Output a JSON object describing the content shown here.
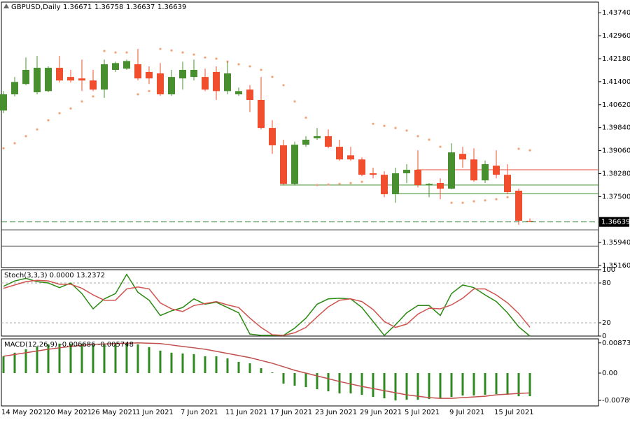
{
  "chart_data": [
    {
      "type": "candlestick",
      "title": "GBPUSD,Daily",
      "categories": [
        "14 May 2021",
        null,
        null,
        null,
        "20 May 2021",
        null,
        null,
        null,
        "26 May 2021",
        null,
        null,
        null,
        "1 Jun 2021",
        null,
        null,
        null,
        "7 Jun 2021",
        null,
        null,
        null,
        "11 Jun 2021",
        null,
        null,
        null,
        "17 Jun 2021",
        null,
        null,
        null,
        "23 Jun 2021",
        null,
        null,
        null,
        "29 Jun 2021",
        null,
        null,
        null,
        "5 Jul 2021",
        null,
        null,
        null,
        "9 Jul 2021",
        null,
        null,
        null,
        "15 Jul 2021",
        null,
        null,
        null
      ],
      "open": [
        1.4042,
        1.4097,
        1.4132,
        1.4104,
        1.4108,
        1.4187,
        1.4156,
        1.4151,
        1.4144,
        1.4113,
        1.418,
        1.4184,
        1.4199,
        1.4173,
        1.4168,
        1.4097,
        1.4151,
        1.4156,
        1.4156,
        1.4173,
        1.4108,
        1.4097,
        1.4113,
        1.4078,
        1.3983,
        1.3924,
        1.3793,
        1.3926,
        1.3948,
        1.3955,
        1.3919,
        1.389,
        1.3876,
        1.3829,
        1.3824,
        1.3758,
        1.3829,
        1.3841,
        1.3789,
        1.3796,
        1.3777,
        1.3895,
        1.3876,
        1.3805,
        1.3855,
        1.3824,
        1.377,
        1.36671
      ],
      "high": [
        1.4108,
        1.4156,
        1.4222,
        1.4227,
        1.4192,
        1.4227,
        1.418,
        1.4215,
        1.418,
        1.4215,
        1.4208,
        1.4215,
        1.4251,
        1.4192,
        1.4203,
        1.418,
        1.4208,
        1.4215,
        1.4184,
        1.4192,
        1.4208,
        1.412,
        1.4128,
        1.4156,
        1.4009,
        1.3943,
        1.3936,
        1.3955,
        1.3983,
        1.3978,
        1.3943,
        1.3919,
        1.3883,
        1.3848,
        1.3836,
        1.3848,
        1.386,
        1.3907,
        1.3796,
        1.3812,
        1.3931,
        1.3919,
        1.3914,
        1.3872,
        1.3907,
        1.386,
        1.3777,
        1.36758
      ],
      "low": [
        1.4033,
        1.409,
        1.4128,
        1.4097,
        1.4104,
        1.4137,
        1.4137,
        1.4108,
        1.4108,
        1.4085,
        1.4173,
        1.418,
        1.4144,
        1.4132,
        1.4092,
        1.4092,
        1.4113,
        1.4144,
        1.4108,
        1.4078,
        1.4097,
        1.4092,
        1.4037,
        1.3978,
        1.3895,
        1.3789,
        1.3789,
        1.3919,
        1.3943,
        1.3914,
        1.3872,
        1.3872,
        1.3819,
        1.3812,
        1.3748,
        1.3729,
        1.3796,
        1.3781,
        1.3748,
        1.3741,
        1.3775,
        1.3848,
        1.38,
        1.3796,
        1.3812,
        1.3758,
        1.3654,
        1.36637
      ],
      "close": [
        1.4097,
        1.4139,
        1.418,
        1.4187,
        1.4187,
        1.4144,
        1.4144,
        1.4144,
        1.4113,
        1.4199,
        1.4203,
        1.421,
        1.4151,
        1.4151,
        1.4097,
        1.4156,
        1.418,
        1.418,
        1.4113,
        1.4108,
        1.4168,
        1.4108,
        1.4078,
        1.3983,
        1.3924,
        1.3793,
        1.3926,
        1.3943,
        1.3955,
        1.3919,
        1.3876,
        1.3876,
        1.3824,
        1.3824,
        1.3758,
        1.3829,
        1.3841,
        1.3789,
        1.3793,
        1.3777,
        1.39,
        1.3876,
        1.3805,
        1.386,
        1.3824,
        1.3765,
        1.3668,
        1.36639
      ],
      "up_color": "#478f2f",
      "down_color": "#f04e2d",
      "sar": {
        "color": "#f4a27a",
        "values": [
          1.3914,
          1.3931,
          1.3955,
          1.3978,
          1.4009,
          1.4033,
          1.4049,
          1.4073,
          1.409,
          1.4244,
          1.4239,
          1.4239,
          1.4097,
          1.4108,
          1.4251,
          1.4246,
          1.4239,
          1.4232,
          1.4222,
          1.4218,
          1.4208,
          1.4199,
          1.4192,
          1.418,
          1.4156,
          1.4128,
          1.4073,
          1.4018,
          1.3789,
          1.3791,
          1.3793,
          1.3796,
          1.38,
          1.3997,
          1.399,
          1.3983,
          1.3974,
          1.3955,
          1.3943,
          1.3919,
          1.3729,
          1.3729,
          1.3734,
          1.3737,
          1.3741,
          1.3748,
          1.3912,
          1.3907
        ]
      },
      "lines": [
        {
          "value": 1.3841,
          "color": "#e0533a"
        },
        {
          "value": 1.3789,
          "color": "#3a8a2a"
        },
        {
          "value": 1.376,
          "color": "#3a8a2a"
        },
        {
          "value": 1.3637,
          "color": "#555555"
        },
        {
          "value": 1.3582,
          "color": "#555555"
        }
      ],
      "price_line_color": "#2e7d32",
      "ylim": [
        1.3509,
        1.441
      ],
      "yticks": [
        {
          "value": 1.4374,
          "label": "1.43740"
        },
        {
          "value": 1.4296,
          "label": "1.42960"
        },
        {
          "value": 1.4218,
          "label": "1.42180"
        },
        {
          "value": 1.414,
          "label": "1.41400"
        },
        {
          "value": 1.4062,
          "label": "1.40620"
        },
        {
          "value": 1.3984,
          "label": "1.39840"
        },
        {
          "value": 1.3906,
          "label": "1.39060"
        },
        {
          "value": 1.3828,
          "label": "1.38280"
        },
        {
          "value": 1.375,
          "label": "1.37500"
        },
        {
          "value": 1.3594,
          "label": "1.35940"
        },
        {
          "value": 1.3516,
          "label": "1.35160"
        }
      ]
    },
    {
      "type": "line",
      "title": "Stoch(3,3,3) 0.0000 13.2372",
      "series": [
        {
          "color": "#2a8a12",
          "values": [
            75,
            83,
            87,
            82,
            80,
            73,
            80,
            64,
            41,
            56,
            64,
            93,
            66,
            54,
            31,
            38,
            43,
            56,
            48,
            51,
            43,
            35,
            3,
            1,
            1,
            1,
            12,
            27,
            48,
            56,
            57,
            56,
            43,
            22,
            1,
            17,
            35,
            46,
            46,
            31,
            64,
            77,
            73,
            62,
            52,
            35,
            14,
            0
          ]
        },
        {
          "color": "#d0534f",
          "values": [
            72,
            77,
            82,
            84,
            83,
            78,
            78,
            72,
            62,
            54,
            54,
            71,
            74,
            71,
            50,
            41,
            37,
            46,
            49,
            52,
            47,
            43,
            27,
            13,
            2,
            1,
            5,
            13,
            29,
            44,
            54,
            56,
            52,
            40,
            22,
            13,
            18,
            33,
            42,
            41,
            47,
            57,
            71,
            71,
            62,
            50,
            34,
            13.2372
          ]
        }
      ],
      "ylim": [
        0,
        100
      ],
      "yticks": [
        100,
        80,
        20,
        0
      ]
    },
    {
      "type": "macd",
      "title": "MACD(12,26,9) -0.006686 -0.005748",
      "histogram": {
        "color": "#2e8b1e",
        "values": [
          0.00487,
          0.00589,
          0.0069,
          0.00771,
          0.00832,
          0.00853,
          0.00853,
          0.00853,
          0.00812,
          0.00832,
          0.00853,
          0.00873,
          0.00832,
          0.00751,
          0.0065,
          0.00589,
          0.00568,
          0.00548,
          0.00487,
          0.00487,
          0.00426,
          0.00325,
          0.00284,
          0.00142,
          0.0002,
          -0.00305,
          -0.00365,
          -0.00406,
          -0.00467,
          -0.00528,
          -0.00589,
          -0.00589,
          -0.00629,
          -0.0069,
          -0.00731,
          -0.00792,
          -0.00771,
          -0.00771,
          -0.00751,
          -0.00731,
          -0.0069,
          -0.0065,
          -0.0065,
          -0.00629,
          -0.00609,
          -0.00629,
          -0.0067,
          -0.006686
        ]
      },
      "signal": {
        "color": "#c0504d",
        "values": [
          0.00487,
          0.00538,
          0.00589,
          0.00639,
          0.0069,
          0.00731,
          0.00771,
          0.00802,
          0.00832,
          0.00842,
          0.00853,
          0.00863,
          0.00873,
          0.00863,
          0.00853,
          0.00812,
          0.00771,
          0.00731,
          0.0069,
          0.00629,
          0.00568,
          0.00507,
          0.00447,
          0.00365,
          0.00284,
          0.00183,
          0.00081,
          0,
          -0.00081,
          -0.00162,
          -0.00244,
          -0.00315,
          -0.00386,
          -0.00447,
          -0.00508,
          -0.00568,
          -0.00629,
          -0.0067,
          -0.00711,
          -0.00731,
          -0.00731,
          -0.00711,
          -0.0069,
          -0.0067,
          -0.00629,
          -0.00609,
          -0.00589,
          -0.005748
        ]
      },
      "ylim": [
        -0.0095,
        0.0099
      ],
      "yticks": [
        0.008734,
        {
          "value": 0,
          "label": "0.00"
        },
        -0.007891
      ]
    }
  ]
}
